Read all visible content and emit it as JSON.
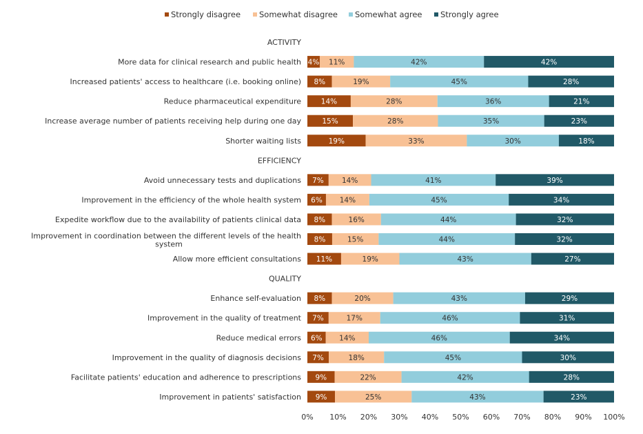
{
  "chart_data": {
    "type": "bar",
    "orientation": "horizontal",
    "stacked": true,
    "xlim": [
      0,
      100
    ],
    "x_ticks": [
      "0%",
      "10%",
      "20%",
      "30%",
      "40%",
      "50%",
      "60%",
      "70%",
      "80%",
      "90%",
      "100%"
    ],
    "legend": {
      "placement": "top",
      "entries": [
        "Strongly disagree",
        "Somewhat disagree",
        "Somewhat agree",
        "Strongly agree"
      ]
    },
    "series": [
      {
        "name": "Strongly disagree",
        "color": "#a3490f"
      },
      {
        "name": "Somewhat disagree",
        "color": "#f8c195"
      },
      {
        "name": "Somewhat agree",
        "color": "#92cddc"
      },
      {
        "name": "Strongly agree",
        "color": "#215967"
      }
    ],
    "rows": [
      {
        "kind": "header",
        "label": "ACTIVITY"
      },
      {
        "kind": "bar",
        "label": "More data for clinical research and public health",
        "values": [
          4,
          11,
          42,
          42
        ]
      },
      {
        "kind": "bar",
        "label": "Increased patients' access to healthcare (i.e. booking online)",
        "values": [
          8,
          19,
          45,
          28
        ]
      },
      {
        "kind": "bar",
        "label": "Reduce pharmaceutical expenditure",
        "values": [
          14,
          28,
          36,
          21
        ]
      },
      {
        "kind": "bar",
        "label": "Increase average number of patients receiving help during one day",
        "values": [
          15,
          28,
          35,
          23
        ]
      },
      {
        "kind": "bar",
        "label": "Shorter waiting lists",
        "values": [
          19,
          33,
          30,
          18
        ]
      },
      {
        "kind": "header",
        "label": "EFFICIENCY"
      },
      {
        "kind": "bar",
        "label": "Avoid unnecessary tests and duplications",
        "values": [
          7,
          14,
          41,
          39
        ]
      },
      {
        "kind": "bar",
        "label": "Improvement in the efficiency of the whole health system",
        "values": [
          6,
          14,
          45,
          34
        ]
      },
      {
        "kind": "bar",
        "label": "Expedite workflow due to the availability of patients clinical data",
        "values": [
          8,
          16,
          44,
          32
        ]
      },
      {
        "kind": "bar",
        "label": "Improvement in coordination between the different levels of the health system",
        "label_lines": [
          "Improvement in coordination between the different levels of the health",
          "system"
        ],
        "values": [
          8,
          15,
          44,
          32
        ]
      },
      {
        "kind": "bar",
        "label": "Allow more efficient consultations",
        "values": [
          11,
          19,
          43,
          27
        ]
      },
      {
        "kind": "header",
        "label": "QUALITY"
      },
      {
        "kind": "bar",
        "label": "Enhance self-evaluation",
        "values": [
          8,
          20,
          43,
          29
        ]
      },
      {
        "kind": "bar",
        "label": "Improvement in the quality of treatment",
        "values": [
          7,
          17,
          46,
          31
        ]
      },
      {
        "kind": "bar",
        "label": "Reduce medical errors",
        "values": [
          6,
          14,
          46,
          34
        ]
      },
      {
        "kind": "bar",
        "label": "Improvement in the quality of diagnosis decisions",
        "values": [
          7,
          18,
          45,
          30
        ]
      },
      {
        "kind": "bar",
        "label": "Facilitate patients' education and adherence to prescriptions",
        "values": [
          9,
          22,
          42,
          28
        ]
      },
      {
        "kind": "bar",
        "label": "Improvement in patients' satisfaction",
        "values": [
          9,
          25,
          43,
          23
        ]
      }
    ]
  }
}
